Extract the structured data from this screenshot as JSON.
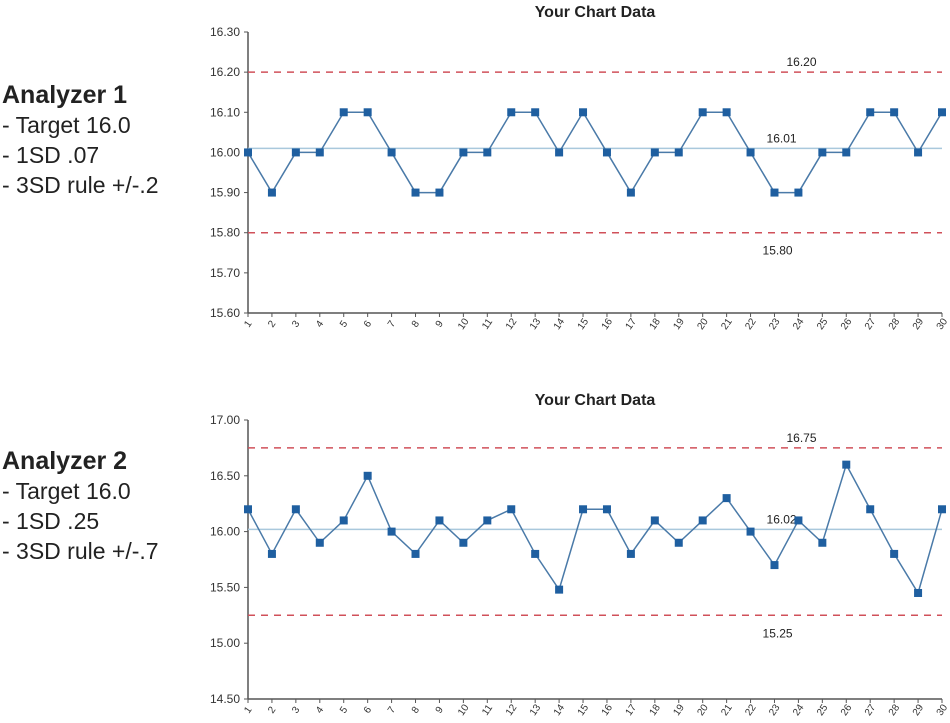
{
  "panels": [
    {
      "heading": "Analyzer 1",
      "lines": [
        "- Target 16.0",
        "- 1SD .07",
        "- 3SD rule +/-.2"
      ]
    },
    {
      "heading": "Analyzer 2",
      "lines": [
        "- Target 16.0",
        "- 1SD .25",
        "- 3SD rule +/-.7"
      ]
    }
  ],
  "colors": {
    "series": "#1f5fa0",
    "line": "#4a7aa8",
    "mean": "#a9c8dc",
    "limit": "#d0505a",
    "axis": "#555555"
  },
  "chart_data": [
    {
      "type": "line",
      "title": "Your Chart Data",
      "x": [
        1,
        2,
        3,
        4,
        5,
        6,
        7,
        8,
        9,
        10,
        11,
        12,
        13,
        14,
        15,
        16,
        17,
        18,
        19,
        20,
        21,
        22,
        23,
        24,
        25,
        26,
        27,
        28,
        29,
        30
      ],
      "values": [
        16.0,
        15.9,
        16.0,
        16.0,
        16.1,
        16.1,
        16.0,
        15.9,
        15.9,
        16.0,
        16.0,
        16.1,
        16.1,
        16.0,
        16.1,
        16.0,
        15.9,
        16.0,
        16.0,
        16.1,
        16.1,
        16.0,
        15.9,
        15.9,
        16.0,
        16.0,
        16.1,
        16.1,
        16.0,
        16.1
      ],
      "ylim": [
        15.6,
        16.3
      ],
      "yticks": [
        "15.60",
        "15.70",
        "15.80",
        "15.90",
        "16.00",
        "16.10",
        "16.20",
        "16.30"
      ],
      "mean": 16.01,
      "mean_label": "16.01",
      "ucl": 16.2,
      "ucl_label": "16.20",
      "lcl": 15.8,
      "lcl_label": "15.80"
    },
    {
      "type": "line",
      "title": "Your Chart Data",
      "x": [
        1,
        2,
        3,
        4,
        5,
        6,
        7,
        8,
        9,
        10,
        11,
        12,
        13,
        14,
        15,
        16,
        17,
        18,
        19,
        20,
        21,
        22,
        23,
        24,
        25,
        26,
        27,
        28,
        29,
        30
      ],
      "values": [
        16.2,
        15.8,
        16.2,
        15.9,
        16.1,
        16.5,
        16.0,
        15.8,
        16.1,
        15.9,
        16.1,
        16.2,
        15.8,
        15.48,
        16.2,
        16.2,
        15.8,
        16.1,
        15.9,
        16.1,
        16.3,
        16.0,
        15.7,
        16.1,
        15.9,
        16.6,
        16.2,
        15.8,
        15.45,
        16.2
      ],
      "ylim": [
        14.5,
        17.0
      ],
      "yticks": [
        "14.50",
        "15.00",
        "15.50",
        "16.00",
        "16.50",
        "17.00"
      ],
      "mean": 16.02,
      "mean_label": "16.02",
      "ucl": 16.75,
      "ucl_label": "16.75",
      "lcl": 15.25,
      "lcl_label": "15.25"
    }
  ]
}
